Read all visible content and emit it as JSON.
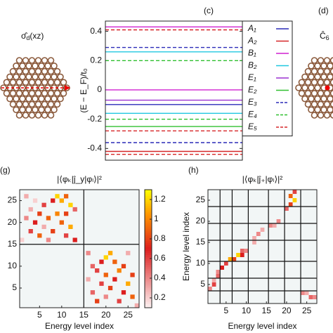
{
  "chart_data": [
    {
      "type": "levels",
      "panel_label": "(c)",
      "y_label": "(E − E_F)/t₀",
      "ylim": [
        -0.48,
        0.47
      ],
      "yticks": [
        -0.4,
        -0.2,
        0,
        0.2,
        0.4
      ],
      "series": [
        {
          "name": "A₁",
          "color": "#2b2bb8",
          "dash": false,
          "values": [
            -0.1
          ]
        },
        {
          "name": "A₂",
          "color": "#d62728",
          "dash": false,
          "values": [
            -0.42
          ]
        },
        {
          "name": "B₁",
          "color": "#d020d0",
          "dash": false,
          "values": [
            0.43,
            0
          ]
        },
        {
          "name": "B₂",
          "color": "#20c8e0",
          "dash": false,
          "values": [
            0.26,
            -0.16
          ]
        },
        {
          "name": "E₁",
          "color": "#9b30d0",
          "dash": false,
          "values": [
            -0.07
          ]
        },
        {
          "name": "E₂",
          "color": "#30c030",
          "dash": false,
          "values": [
            -0.25
          ]
        },
        {
          "name": "E₃",
          "color": "#2b2bb8",
          "dash": true,
          "values": [
            0.29,
            -0.36
          ]
        },
        {
          "name": "E₄",
          "color": "#30c030",
          "dash": true,
          "values": [
            0.2,
            -0.2
          ]
        },
        {
          "name": "E₅",
          "color": "#d62728",
          "dash": true,
          "values": [
            0.41,
            -0.28,
            -0.44
          ]
        }
      ]
    },
    {
      "type": "heatmap",
      "panel_label": "(g)",
      "title": "|⟨φₖ|ĵ_y|φₗ⟩|²",
      "x_label": "Energy level index",
      "xlim": [
        0.5,
        27.5
      ],
      "ylim": [
        0.5,
        27.5
      ],
      "xticks": [
        5,
        10,
        15,
        20,
        25
      ],
      "yticks": [
        5,
        10,
        15,
        20,
        25
      ],
      "block_edges": [
        15
      ],
      "clim": [
        0.1,
        1.3
      ],
      "cticks": [
        0.2,
        0.4,
        0.6,
        0.8,
        1,
        1.2
      ],
      "cells": [
        [
          9,
          26,
          1.2
        ],
        [
          10,
          25,
          1.1
        ],
        [
          11,
          26,
          0.9
        ],
        [
          8,
          25,
          0.7
        ],
        [
          6,
          24,
          0.6
        ],
        [
          12,
          24,
          1.2
        ],
        [
          3,
          23,
          0.3
        ],
        [
          5,
          22,
          0.8
        ],
        [
          7,
          21,
          0.9
        ],
        [
          9,
          22,
          1.0
        ],
        [
          11,
          22,
          0.8
        ],
        [
          13,
          23,
          0.5
        ],
        [
          2,
          21,
          0.4
        ],
        [
          4,
          20,
          0.7
        ],
        [
          10,
          20,
          0.9
        ],
        [
          12,
          19,
          1.1
        ],
        [
          6,
          19,
          0.3
        ],
        [
          8,
          18,
          0.8
        ],
        [
          3,
          18,
          0.6
        ],
        [
          5,
          17,
          0.9
        ],
        [
          11,
          17,
          0.6
        ],
        [
          13,
          16,
          0.7
        ],
        [
          1,
          16,
          0.2
        ],
        [
          7,
          16,
          0.4
        ],
        [
          2,
          26,
          0.3
        ],
        [
          4,
          25,
          0.2
        ],
        [
          20,
          12,
          1.2
        ],
        [
          21,
          13,
          1.1
        ],
        [
          22,
          11,
          0.9
        ],
        [
          19,
          11,
          0.7
        ],
        [
          24,
          10,
          0.8
        ],
        [
          17,
          10,
          0.5
        ],
        [
          18,
          9,
          0.6
        ],
        [
          23,
          9,
          1.0
        ],
        [
          26,
          8,
          0.8
        ],
        [
          20,
          8,
          0.9
        ],
        [
          16,
          7,
          0.3
        ],
        [
          22,
          7,
          0.7
        ],
        [
          25,
          6,
          1.1
        ],
        [
          19,
          6,
          0.6
        ],
        [
          21,
          5,
          0.8
        ],
        [
          17,
          4,
          0.5
        ],
        [
          24,
          4,
          0.7
        ],
        [
          26,
          3,
          0.9
        ],
        [
          20,
          3,
          0.4
        ],
        [
          23,
          2,
          0.6
        ],
        [
          18,
          2,
          0.8
        ],
        [
          27,
          1,
          0.3
        ],
        [
          16,
          13,
          0.4
        ],
        [
          25,
          13,
          0.3
        ]
      ]
    },
    {
      "type": "heatmap",
      "panel_label": "(h)",
      "title": "|⟨φₖ|ĵ₊|φₗ⟩|²",
      "x_label": "Energy level index",
      "y_label": "Energy level index",
      "xlim": [
        0.5,
        27.5
      ],
      "ylim": [
        0.5,
        27.5
      ],
      "xticks": [
        5,
        10,
        15,
        20,
        25
      ],
      "yticks": [
        5,
        10,
        15,
        20,
        25
      ],
      "block_edges": [
        3.5,
        6.5,
        10.5,
        15.5,
        19.5,
        23.5
      ],
      "clim": [
        0.1,
        1.3
      ],
      "cells": [
        [
          1,
          4,
          0.4
        ],
        [
          2,
          5,
          0.6
        ],
        [
          2,
          6,
          0.3
        ],
        [
          3,
          7,
          0.5
        ],
        [
          3,
          8,
          0.4
        ],
        [
          4,
          9,
          0.7
        ],
        [
          5,
          10,
          0.6
        ],
        [
          6,
          11,
          1.1
        ],
        [
          7,
          11,
          0.8
        ],
        [
          8,
          12,
          1.2
        ],
        [
          9,
          12,
          0.7
        ],
        [
          9,
          13,
          0.5
        ],
        [
          10,
          13,
          0.4
        ],
        [
          12,
          15,
          0.3
        ],
        [
          12,
          16,
          0.3
        ],
        [
          13,
          17,
          0.4
        ],
        [
          14,
          18,
          0.3
        ],
        [
          16,
          19,
          0.4
        ],
        [
          17,
          19,
          0.3
        ],
        [
          18,
          20,
          0.4
        ],
        [
          20,
          23,
          0.5
        ],
        [
          21,
          24,
          0.8
        ],
        [
          22,
          25,
          1.2
        ],
        [
          21,
          26,
          0.9
        ],
        [
          22,
          27,
          0.6
        ],
        [
          24,
          3,
          0.4
        ],
        [
          25,
          3,
          0.3
        ],
        [
          26,
          2,
          0.5
        ],
        [
          27,
          2,
          0.4
        ]
      ]
    }
  ],
  "molecules": [
    {
      "symbol": "σ̂",
      "subscript": "d",
      "suffix": "(xz)"
    },
    {
      "panel_label": "(d)",
      "symbol": "Ĉ",
      "subscript": "6"
    }
  ]
}
